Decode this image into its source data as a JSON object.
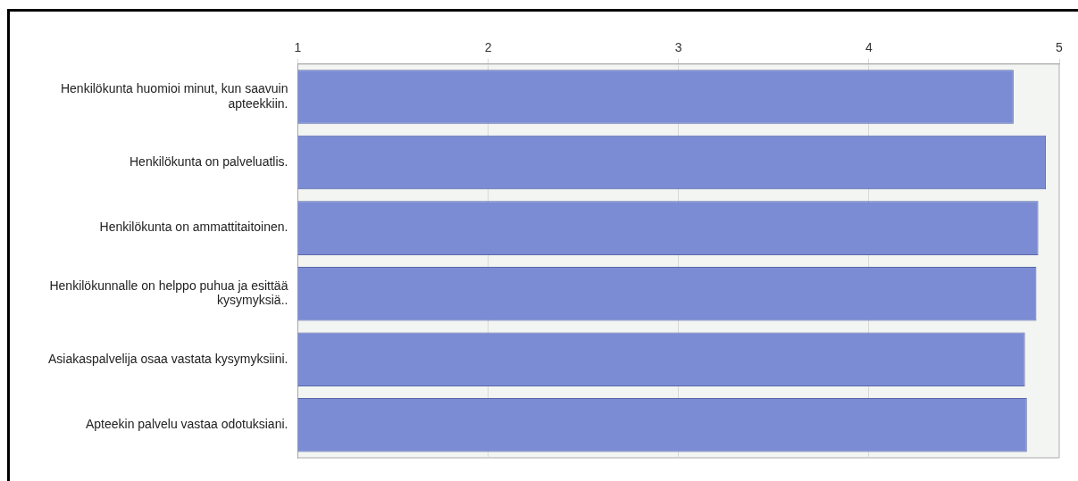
{
  "chart_data": {
    "type": "bar",
    "orientation": "horizontal",
    "categories": [
      "Henkilökunta huomioi minut, kun saavuin apteekkiin.",
      "Henkilökunta on palveluatlis.",
      "Henkilökunta on ammattitaitoinen.",
      "Henkilökunnalle on helppo puhua ja esittää kysymyksiä..",
      "Asiakaspalvelija osaa vastata kysymyksiini.",
      "Apteekin palvelu vastaa odotuksiani."
    ],
    "values": [
      4.76,
      4.93,
      4.89,
      4.88,
      4.82,
      4.83
    ],
    "color": "#7b8cd4",
    "xlim": [
      1,
      5
    ],
    "xticks": [
      1,
      2,
      3,
      4,
      5
    ],
    "grid": "x",
    "legend": false
  }
}
